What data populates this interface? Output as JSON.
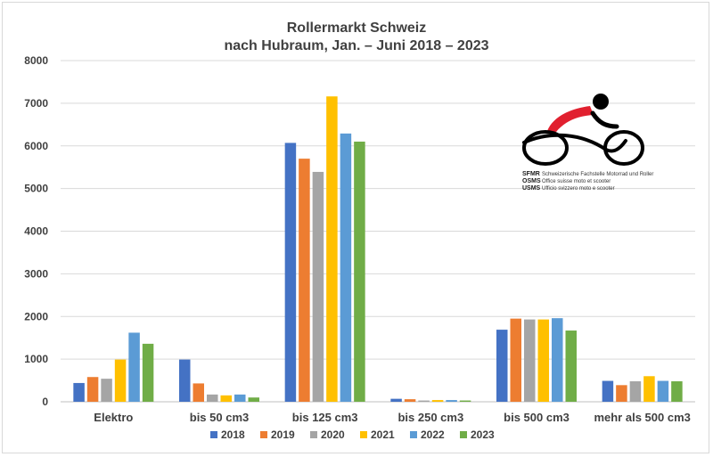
{
  "chart_data": {
    "type": "bar",
    "title": [
      "Rollermarkt Schweiz",
      "nach Hubraum, Jan. – Juni 2018 – 2023"
    ],
    "categories": [
      "Elektro",
      "bis 50 cm3",
      "bis 125 cm3",
      "bis 250 cm3",
      "bis 500 cm3",
      "mehr als 500 cm3"
    ],
    "series": [
      {
        "name": "2018",
        "color": "#4472c4",
        "values": [
          440,
          990,
          6070,
          70,
          1690,
          490
        ]
      },
      {
        "name": "2019",
        "color": "#ed7d31",
        "values": [
          580,
          430,
          5700,
          60,
          1950,
          390
        ]
      },
      {
        "name": "2020",
        "color": "#a5a5a5",
        "values": [
          540,
          170,
          5390,
          30,
          1930,
          480
        ]
      },
      {
        "name": "2021",
        "color": "#ffc000",
        "values": [
          990,
          150,
          7160,
          40,
          1930,
          600
        ]
      },
      {
        "name": "2022",
        "color": "#5b9bd5",
        "values": [
          1620,
          170,
          6290,
          40,
          1960,
          490
        ]
      },
      {
        "name": "2023",
        "color": "#70ad47",
        "values": [
          1360,
          100,
          6100,
          30,
          1670,
          480
        ]
      }
    ],
    "ylim": [
      0,
      8000
    ],
    "yticks": [
      0,
      1000,
      2000,
      3000,
      4000,
      5000,
      6000,
      7000,
      8000
    ],
    "grid": true,
    "legend": "bottom",
    "xlabel": "",
    "ylabel": ""
  },
  "logo": {
    "lines": [
      {
        "abbr": "SFMR",
        "text": "Schweizerische Fachstelle Motorrad und Roller"
      },
      {
        "abbr": "OSMS",
        "text": "Office suisse moto et scooter"
      },
      {
        "abbr": "USMS",
        "text": "Ufficio svizzero moto e scooter"
      }
    ],
    "colors": {
      "red": "#e1202f",
      "black": "#000000"
    }
  }
}
